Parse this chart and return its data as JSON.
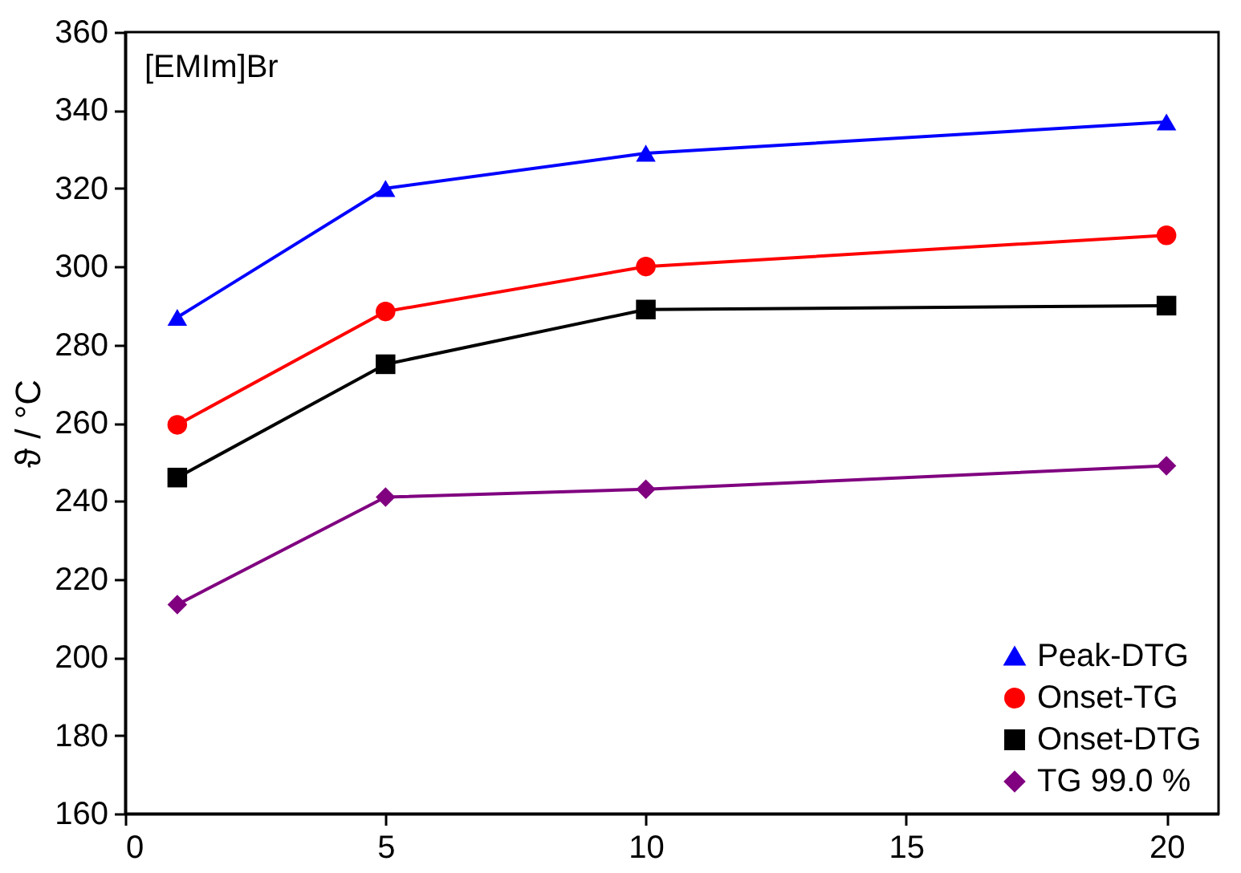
{
  "chart_data": {
    "type": "line",
    "ylabel": "ϑ / °C",
    "annotations": [
      "[EMIm]Br"
    ],
    "x": [
      1,
      5,
      10,
      20
    ],
    "xlim": [
      0,
      21
    ],
    "xticks": [
      0,
      5,
      10,
      15,
      20
    ],
    "ylim": [
      160,
      360
    ],
    "yticks": [
      160,
      180,
      200,
      220,
      240,
      260,
      280,
      300,
      320,
      340,
      360
    ],
    "legend": "bottom right",
    "grid": false,
    "series": [
      {
        "name": "Peak-DTG",
        "color": "#0000ff",
        "marker": "triangle",
        "values": [
          287,
          320,
          329,
          337
        ]
      },
      {
        "name": "Onset-TG",
        "color": "#ff0000",
        "marker": "circle",
        "values": [
          259.5,
          288.5,
          300,
          308
        ]
      },
      {
        "name": "Onset-DTG",
        "color": "#000000",
        "marker": "square",
        "values": [
          246,
          275,
          289,
          290
        ]
      },
      {
        "name": "TG 99.0 %",
        "color": "#800080",
        "marker": "diamond",
        "values": [
          213.5,
          241,
          243,
          249
        ]
      }
    ]
  }
}
